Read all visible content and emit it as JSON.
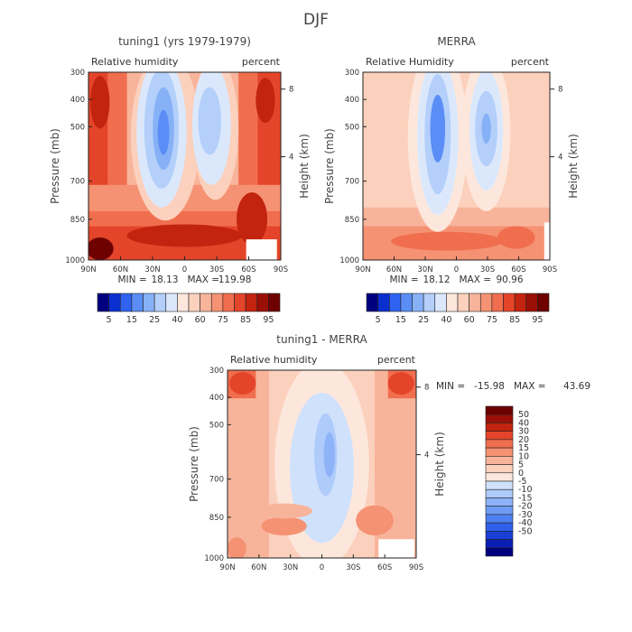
{
  "figure_title": "DJF",
  "colors": {
    "abs_scale": [
      "#00007f",
      "#0a2fcf",
      "#2f63f0",
      "#5a8df5",
      "#86b1f7",
      "#b3cffa",
      "#dbe8fc",
      "#fde7dc",
      "#fbd0bc",
      "#f8b49b",
      "#f59273",
      "#f06e4e",
      "#e4452a",
      "#c3240f",
      "#9a1006",
      "#6e0000"
    ],
    "diff_scale": [
      "#00007f",
      "#0a1fb5",
      "#1a3fd6",
      "#3060ea",
      "#4f80f2",
      "#6e9af5",
      "#8fb3f8",
      "#afcbfa",
      "#d0e1fc",
      "#fde7dc",
      "#fbd0bc",
      "#f8b49b",
      "#f59273",
      "#f06e4e",
      "#e4452a",
      "#c3240f",
      "#9a1006",
      "#6e0000"
    ]
  },
  "chart_data": [
    {
      "type": "heatmap",
      "title": "tuning1 (yrs 1979-1979)",
      "subtitle_left": "Relative humidity",
      "subtitle_right": "percent",
      "ylabel": "Pressure (mb)",
      "ylabel_right": "Height (km)",
      "x_ticks": [
        "90N",
        "60N",
        "30N",
        "0",
        "30S",
        "60S",
        "90S"
      ],
      "y_ticks": [
        300,
        400,
        500,
        700,
        850,
        1000
      ],
      "y_range": [
        300,
        1000
      ],
      "height_ticks": [
        4,
        8
      ],
      "stats": {
        "min_label": "MIN =",
        "min": "18.13",
        "max_label": "MAX =",
        "max": "119.98"
      },
      "colorbar": {
        "orientation": "horizontal",
        "labels": [
          "5",
          "15",
          "25",
          "40",
          "60",
          "75",
          "85",
          "95"
        ]
      }
    },
    {
      "type": "heatmap",
      "title": "MERRA",
      "subtitle_left": "Relative Humidity",
      "subtitle_right": "percent",
      "ylabel": "Pressure (mb)",
      "ylabel_right": "Height (km)",
      "x_ticks": [
        "90N",
        "60N",
        "30N",
        "0",
        "30S",
        "60S",
        "90S"
      ],
      "y_ticks": [
        300,
        400,
        500,
        700,
        850,
        1000
      ],
      "y_range": [
        300,
        1000
      ],
      "height_ticks": [
        4,
        8
      ],
      "stats": {
        "min_label": "MIN =",
        "min": "18.12",
        "max_label": "MAX =",
        "max": "90.96"
      },
      "colorbar": {
        "orientation": "horizontal",
        "labels": [
          "5",
          "15",
          "25",
          "40",
          "60",
          "75",
          "85",
          "95"
        ]
      }
    },
    {
      "type": "heatmap",
      "title": "tuning1 - MERRA",
      "subtitle_left": "Relative humidity",
      "subtitle_right": "percent",
      "ylabel": "Pressure (mb)",
      "ylabel_right": "Height (km)",
      "x_ticks": [
        "90N",
        "60N",
        "30N",
        "0",
        "30S",
        "60S",
        "90S"
      ],
      "y_ticks": [
        300,
        400,
        500,
        700,
        850,
        1000
      ],
      "y_range": [
        300,
        1000
      ],
      "height_ticks": [
        4,
        8
      ],
      "stats": {
        "min_label": "MIN =",
        "min": "-15.98",
        "max_label": "MAX =",
        "max": "43.69"
      },
      "colorbar": {
        "orientation": "vertical",
        "labels": [
          "50",
          "40",
          "30",
          "20",
          "15",
          "10",
          "5",
          "0",
          "-5",
          "-10",
          "-15",
          "-20",
          "-30",
          "-40",
          "-50"
        ]
      }
    }
  ]
}
